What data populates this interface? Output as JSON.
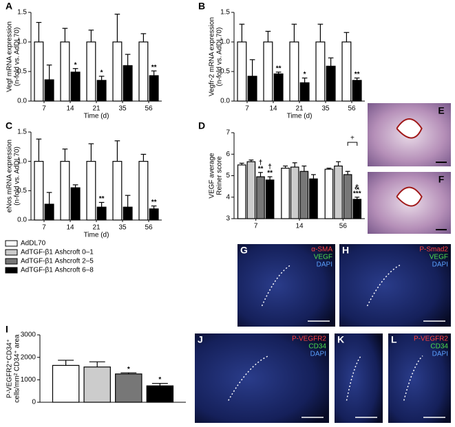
{
  "chart_data": [
    {
      "panel": "A",
      "type": "bar",
      "ylabel": [
        "Vegf mRNA expression",
        "(n-fold vs. AdDL70)"
      ],
      "xlabel": "Time (d)",
      "categories": [
        "7",
        "14",
        "21",
        "35",
        "56"
      ],
      "ylim": [
        0,
        1.5
      ],
      "yticks": [
        {
          "value": 0,
          "label": "0.0"
        },
        0.5,
        {
          "value": 1,
          "label": "1.0"
        },
        1.5
      ],
      "series": [
        {
          "color": "#ffffff",
          "values": [
            1,
            1,
            1,
            1,
            1
          ],
          "errors": [
            0.33,
            0.23,
            0.2,
            0.47,
            0.14
          ],
          "significance": [
            null,
            null,
            null,
            null,
            null
          ]
        },
        {
          "color": "#000000",
          "values": [
            0.36,
            0.49,
            0.35,
            0.6,
            0.43
          ],
          "errors": [
            0.25,
            0.06,
            0.07,
            0.19,
            0.08
          ],
          "significance": [
            null,
            "*",
            "*",
            null,
            "**"
          ]
        }
      ]
    },
    {
      "panel": "B",
      "type": "bar",
      "ylabel": [
        "Vegfr-2 mRNA expression",
        "(n-fold vs. AdDL70)"
      ],
      "xlabel": "Time (d)",
      "categories": [
        "7",
        "14",
        "21",
        "35",
        "56"
      ],
      "ylim": [
        0,
        1.5
      ],
      "yticks": [
        {
          "value": 0,
          "label": "0.0"
        },
        0.5,
        {
          "value": 1,
          "label": "1.0"
        },
        1.5
      ],
      "series": [
        {
          "color": "#ffffff",
          "values": [
            1,
            1,
            1,
            1,
            1
          ],
          "errors": [
            0.3,
            0.18,
            0.3,
            0.3,
            0.16
          ],
          "significance": [
            null,
            null,
            null,
            null,
            null
          ]
        },
        {
          "color": "#000000",
          "values": [
            0.42,
            0.46,
            0.31,
            0.59,
            0.35
          ],
          "errors": [
            0.28,
            0.03,
            0.08,
            0.14,
            0.04
          ],
          "significance": [
            null,
            "**",
            "*",
            null,
            "**"
          ]
        }
      ]
    },
    {
      "panel": "C",
      "type": "bar",
      "ylabel": [
        "eNos mRNA expression",
        "(n-fold vs. AdDL70)"
      ],
      "xlabel": "Time (d)",
      "categories": [
        "7",
        "14",
        "21",
        "35",
        "56"
      ],
      "ylim": [
        0,
        1.5
      ],
      "yticks": [
        {
          "value": 0,
          "label": "0.0"
        },
        0.5,
        {
          "value": 1,
          "label": "1.0"
        },
        1.5
      ],
      "series": [
        {
          "color": "#ffffff",
          "values": [
            1,
            1,
            1,
            1,
            1
          ],
          "errors": [
            0.38,
            0.21,
            0.3,
            0.35,
            0.12
          ],
          "significance": [
            null,
            null,
            null,
            null,
            null
          ]
        },
        {
          "color": "#000000",
          "values": [
            0.27,
            0.55,
            0.22,
            0.22,
            0.19
          ],
          "errors": [
            0.2,
            0.05,
            0.08,
            0.2,
            0.05
          ],
          "significance": [
            null,
            null,
            "**",
            null,
            "**"
          ]
        }
      ]
    },
    {
      "panel": "D",
      "type": "bar",
      "ylabel": [
        "VEGF average",
        "Reiner score"
      ],
      "categories": [
        "7",
        "14",
        "56"
      ],
      "ylim": [
        3,
        7
      ],
      "yticks": [
        3,
        4,
        5,
        6,
        7
      ],
      "bracket_label": "+",
      "series": [
        {
          "name": "AdDL70",
          "color": "#ffffff",
          "values": [
            5.5,
            5.35,
            5.3
          ],
          "errors": [
            0.08,
            0.1,
            0.05
          ],
          "significance": [
            null,
            null,
            null
          ]
        },
        {
          "name": "AdTGF-β1 Ashcroft 0–1",
          "color": "#cccccc",
          "values": [
            5.65,
            5.4,
            5.45
          ],
          "errors": [
            0.08,
            0.2,
            0.2
          ],
          "significance": [
            null,
            null,
            null
          ]
        },
        {
          "name": "AdTGF-β1 Ashcroft 2–5",
          "color": "#777777",
          "values": [
            4.95,
            5.2,
            5.05
          ],
          "errors": [
            0.2,
            0.25,
            0.15
          ],
          "significance": [
            [
              "†",
              "**"
            ],
            null,
            null
          ]
        },
        {
          "name": "AdTGF-β1 Ashcroft 6–8",
          "color": "#000000",
          "values": [
            4.8,
            4.85,
            3.9
          ],
          "errors": [
            0.15,
            0.2,
            0.1
          ],
          "significance": [
            [
              "†",
              "**"
            ],
            null,
            [
              "&",
              "***"
            ]
          ]
        }
      ]
    },
    {
      "panel": "I",
      "type": "bar",
      "ylabel": [
        "P-VEGFR2⁺CD34⁺",
        "cells/mm² CD34⁺ area"
      ],
      "categories": [
        null
      ],
      "ylim": [
        0,
        3000
      ],
      "yticks": [
        0,
        1000,
        2000,
        3000
      ],
      "series": [
        {
          "color": "#ffffff",
          "values": [
            1640
          ],
          "errors": [
            230
          ],
          "significance": [
            null
          ]
        },
        {
          "color": "#cccccc",
          "values": [
            1570
          ],
          "errors": [
            230
          ],
          "significance": [
            null
          ]
        },
        {
          "color": "#777777",
          "values": [
            1260
          ],
          "errors": [
            50
          ],
          "significance": [
            "*"
          ]
        },
        {
          "color": "#000000",
          "values": [
            730
          ],
          "errors": [
            110
          ],
          "significance": [
            "*"
          ]
        }
      ]
    }
  ],
  "images": [
    {
      "panel": "E",
      "stains": []
    },
    {
      "panel": "F",
      "stains": []
    },
    {
      "panel": "G",
      "stains": [
        "α-SMA",
        "VEGF",
        "DAPI"
      ]
    },
    {
      "panel": "H",
      "stains": [
        "P-Smad2",
        "VEGF",
        "DAPI"
      ]
    },
    {
      "panel": "J",
      "stains": [
        "P-VEGFR2",
        "CD34",
        "DAPI"
      ]
    },
    {
      "panel": "K",
      "stains": []
    },
    {
      "panel": "L",
      "stains": [
        "P-VEGFR2",
        "CD34",
        "DAPI"
      ]
    }
  ]
}
